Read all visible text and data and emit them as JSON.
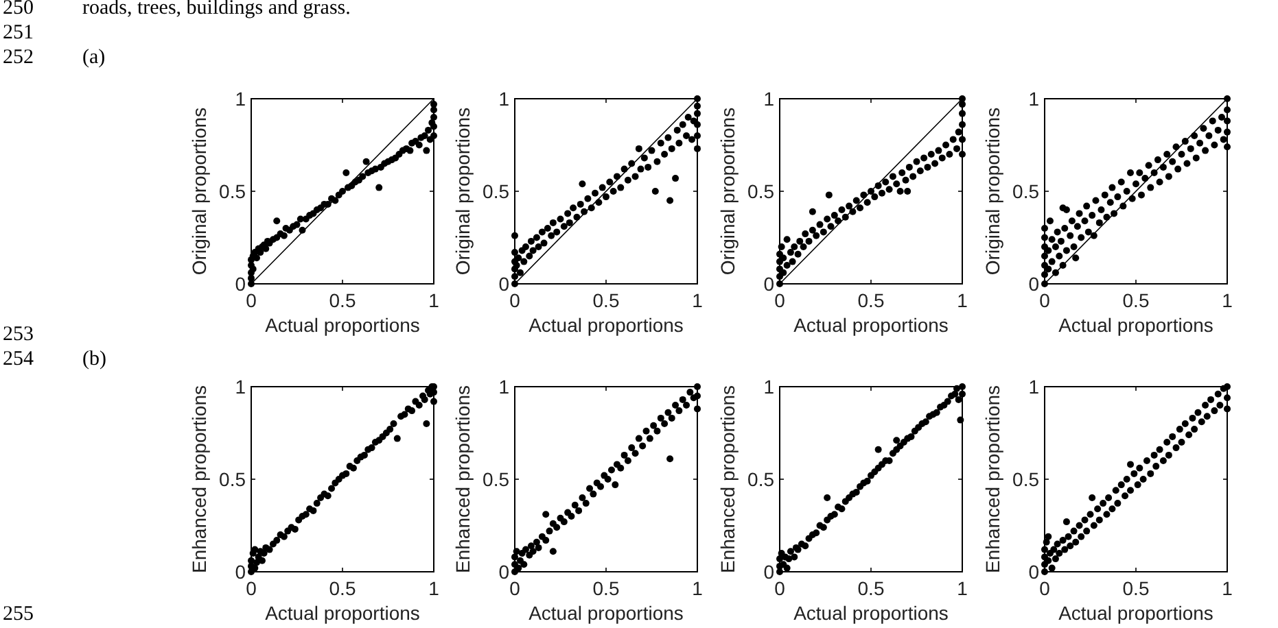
{
  "chart_data": [
    {
      "type": "scatter",
      "xlabel": "Actual proportions",
      "ylabel": "Original proportions",
      "xlim": [
        0,
        1
      ],
      "ylim": [
        0,
        1
      ],
      "xticks": [
        0,
        0.5,
        1
      ],
      "yticks": [
        0,
        0.5,
        1
      ],
      "marker": "circle",
      "annotations": [
        "250",
        "roads, trees, buildings and grass.",
        "251",
        "252",
        "(a)",
        "253"
      ],
      "series": [
        {
          "color": "#000000",
          "x": [
            0,
            0,
            0,
            0,
            0,
            0.01,
            0.01,
            0.02,
            0.03,
            0.04,
            0.05,
            0.06,
            0.07,
            0.08,
            0.09,
            0.1,
            0.12,
            0.14,
            0.14,
            0.16,
            0.18,
            0.19,
            0.21,
            0.23,
            0.25,
            0.27,
            0.28,
            0.3,
            0.32,
            0.34,
            0.36,
            0.38,
            0.4,
            0.42,
            0.44,
            0.46,
            0.48,
            0.5,
            0.52,
            0.53,
            0.55,
            0.57,
            0.59,
            0.61,
            0.63,
            0.64,
            0.66,
            0.68,
            0.7,
            0.71,
            0.73,
            0.75,
            0.77,
            0.79,
            0.81,
            0.83,
            0.85,
            0.87,
            0.88,
            0.9,
            0.92,
            0.93,
            0.95,
            0.96,
            0.97,
            0.98,
            0.99,
            1,
            1,
            1,
            1,
            1
          ],
          "values": [
            0,
            0.03,
            0.06,
            0.1,
            0.13,
            0.15,
            0.08,
            0.17,
            0.14,
            0.19,
            0.17,
            0.2,
            0.21,
            0.19,
            0.23,
            0.22,
            0.24,
            0.34,
            0.25,
            0.27,
            0.26,
            0.3,
            0.29,
            0.31,
            0.32,
            0.35,
            0.29,
            0.35,
            0.37,
            0.38,
            0.4,
            0.41,
            0.43,
            0.43,
            0.46,
            0.45,
            0.48,
            0.5,
            0.6,
            0.52,
            0.53,
            0.55,
            0.56,
            0.58,
            0.66,
            0.6,
            0.61,
            0.62,
            0.52,
            0.63,
            0.65,
            0.66,
            0.67,
            0.68,
            0.7,
            0.72,
            0.73,
            0.72,
            0.76,
            0.77,
            0.75,
            0.79,
            0.8,
            0.72,
            0.83,
            0.78,
            0.87,
            0.8,
            0.85,
            0.9,
            0.94,
            0.97
          ]
        },
        {
          "type": "line",
          "marker": "none",
          "color": "#000000",
          "x": [
            0,
            1
          ],
          "values": [
            0,
            1
          ]
        }
      ]
    },
    {
      "type": "scatter",
      "xlabel": "Actual proportions",
      "ylabel": "Original proportions",
      "xlim": [
        0,
        1
      ],
      "ylim": [
        0,
        1
      ],
      "xticks": [
        0,
        0.5,
        1
      ],
      "yticks": [
        0,
        0.5,
        1
      ],
      "marker": "circle",
      "series": [
        {
          "color": "#000000",
          "x": [
            0,
            0,
            0,
            0,
            0,
            0,
            0.01,
            0.02,
            0.03,
            0.04,
            0.05,
            0.06,
            0.08,
            0.09,
            0.1,
            0.12,
            0.13,
            0.15,
            0.16,
            0.18,
            0.2,
            0.21,
            0.23,
            0.25,
            0.27,
            0.29,
            0.3,
            0.32,
            0.34,
            0.36,
            0.37,
            0.38,
            0.4,
            0.42,
            0.44,
            0.46,
            0.48,
            0.5,
            0.52,
            0.54,
            0.56,
            0.58,
            0.6,
            0.62,
            0.64,
            0.66,
            0.68,
            0.69,
            0.71,
            0.73,
            0.75,
            0.77,
            0.78,
            0.8,
            0.82,
            0.84,
            0.85,
            0.86,
            0.88,
            0.89,
            0.9,
            0.92,
            0.94,
            0.95,
            0.97,
            0.98,
            1,
            1,
            1,
            1,
            1,
            1
          ],
          "values": [
            0,
            0.04,
            0.08,
            0.12,
            0.17,
            0.26,
            0.1,
            0.14,
            0.06,
            0.18,
            0.12,
            0.2,
            0.15,
            0.23,
            0.18,
            0.25,
            0.2,
            0.28,
            0.22,
            0.3,
            0.26,
            0.33,
            0.28,
            0.35,
            0.31,
            0.38,
            0.33,
            0.41,
            0.36,
            0.43,
            0.54,
            0.39,
            0.46,
            0.41,
            0.49,
            0.44,
            0.52,
            0.47,
            0.55,
            0.5,
            0.58,
            0.52,
            0.62,
            0.56,
            0.65,
            0.58,
            0.73,
            0.62,
            0.68,
            0.63,
            0.72,
            0.5,
            0.66,
            0.76,
            0.7,
            0.79,
            0.45,
            0.73,
            0.57,
            0.83,
            0.76,
            0.86,
            0.8,
            0.9,
            0.78,
            0.88,
            0.73,
            0.8,
            0.86,
            0.92,
            0.96,
            1
          ]
        },
        {
          "type": "line",
          "marker": "none",
          "color": "#000000",
          "x": [
            0,
            1
          ],
          "values": [
            0,
            1
          ]
        }
      ]
    },
    {
      "type": "scatter",
      "xlabel": "Actual proportions",
      "ylabel": "Original proportions",
      "xlim": [
        0,
        1
      ],
      "ylim": [
        0,
        1
      ],
      "xticks": [
        0,
        0.5,
        1
      ],
      "yticks": [
        0,
        0.5,
        1
      ],
      "marker": "circle",
      "series": [
        {
          "color": "#000000",
          "x": [
            0,
            0,
            0,
            0,
            0,
            0.01,
            0.02,
            0.02,
            0.04,
            0.04,
            0.06,
            0.07,
            0.08,
            0.1,
            0.11,
            0.13,
            0.14,
            0.16,
            0.18,
            0.18,
            0.2,
            0.22,
            0.24,
            0.26,
            0.27,
            0.28,
            0.3,
            0.32,
            0.34,
            0.36,
            0.38,
            0.4,
            0.42,
            0.44,
            0.46,
            0.48,
            0.5,
            0.52,
            0.54,
            0.56,
            0.58,
            0.6,
            0.62,
            0.64,
            0.66,
            0.67,
            0.69,
            0.7,
            0.71,
            0.73,
            0.75,
            0.77,
            0.79,
            0.81,
            0.83,
            0.85,
            0.87,
            0.89,
            0.91,
            0.93,
            0.95,
            0.97,
            0.98,
            1,
            1,
            1,
            1,
            1,
            1
          ],
          "values": [
            0,
            0.04,
            0.08,
            0.12,
            0.16,
            0.2,
            0.06,
            0.14,
            0.24,
            0.1,
            0.17,
            0.12,
            0.2,
            0.16,
            0.23,
            0.2,
            0.27,
            0.23,
            0.39,
            0.29,
            0.26,
            0.32,
            0.28,
            0.35,
            0.48,
            0.31,
            0.37,
            0.34,
            0.4,
            0.36,
            0.42,
            0.39,
            0.45,
            0.41,
            0.48,
            0.44,
            0.5,
            0.47,
            0.53,
            0.49,
            0.55,
            0.51,
            0.58,
            0.54,
            0.5,
            0.6,
            0.56,
            0.5,
            0.63,
            0.58,
            0.66,
            0.61,
            0.68,
            0.63,
            0.7,
            0.65,
            0.72,
            0.68,
            0.75,
            0.7,
            0.78,
            0.73,
            0.82,
            0.7,
            0.78,
            0.86,
            0.92,
            0.97,
            1
          ]
        },
        {
          "type": "line",
          "marker": "none",
          "color": "#000000",
          "x": [
            0,
            1
          ],
          "values": [
            0,
            1
          ]
        }
      ]
    },
    {
      "type": "scatter",
      "xlabel": "Actual proportions",
      "ylabel": "Original proportions",
      "xlim": [
        0,
        1
      ],
      "ylim": [
        0,
        1
      ],
      "xticks": [
        0,
        0.5,
        1
      ],
      "yticks": [
        0,
        0.5,
        1
      ],
      "marker": "circle",
      "series": [
        {
          "color": "#000000",
          "x": [
            0,
            0,
            0,
            0,
            0,
            0,
            0,
            0.02,
            0.02,
            0.03,
            0.04,
            0.04,
            0.06,
            0.06,
            0.07,
            0.08,
            0.09,
            0.1,
            0.1,
            0.11,
            0.12,
            0.12,
            0.14,
            0.15,
            0.16,
            0.17,
            0.18,
            0.19,
            0.2,
            0.22,
            0.23,
            0.24,
            0.26,
            0.27,
            0.28,
            0.3,
            0.31,
            0.33,
            0.34,
            0.36,
            0.37,
            0.38,
            0.4,
            0.42,
            0.43,
            0.45,
            0.47,
            0.48,
            0.5,
            0.52,
            0.53,
            0.55,
            0.57,
            0.58,
            0.6,
            0.62,
            0.63,
            0.65,
            0.67,
            0.68,
            0.7,
            0.72,
            0.73,
            0.75,
            0.77,
            0.78,
            0.8,
            0.82,
            0.83,
            0.85,
            0.87,
            0.88,
            0.9,
            0.92,
            0.93,
            0.95,
            0.97,
            0.98,
            1,
            1,
            1,
            1,
            1
          ],
          "values": [
            0,
            0.05,
            0.1,
            0.15,
            0.2,
            0.25,
            0.3,
            0.08,
            0.18,
            0.34,
            0.12,
            0.24,
            0.06,
            0.2,
            0.28,
            0.15,
            0.23,
            0.41,
            0.1,
            0.3,
            0.4,
            0.18,
            0.26,
            0.34,
            0.2,
            0.14,
            0.31,
            0.38,
            0.25,
            0.34,
            0.42,
            0.28,
            0.37,
            0.26,
            0.45,
            0.33,
            0.4,
            0.48,
            0.36,
            0.44,
            0.52,
            0.38,
            0.47,
            0.55,
            0.42,
            0.5,
            0.6,
            0.46,
            0.54,
            0.6,
            0.48,
            0.57,
            0.64,
            0.52,
            0.6,
            0.67,
            0.55,
            0.63,
            0.7,
            0.58,
            0.66,
            0.74,
            0.62,
            0.7,
            0.77,
            0.65,
            0.73,
            0.8,
            0.68,
            0.76,
            0.84,
            0.72,
            0.8,
            0.88,
            0.75,
            0.83,
            0.9,
            0.78,
            0.74,
            0.82,
            0.88,
            0.94,
            1
          ]
        },
        {
          "type": "line",
          "marker": "none",
          "color": "#000000",
          "x": [
            0,
            1
          ],
          "values": [
            0,
            1
          ]
        }
      ]
    },
    {
      "type": "scatter",
      "xlabel": "Actual proportions",
      "ylabel": "Enhanced proportions",
      "xlim": [
        0,
        1
      ],
      "ylim": [
        0,
        1
      ],
      "xticks": [
        0,
        0.5,
        1
      ],
      "yticks": [
        0,
        0.5,
        1
      ],
      "marker": "circle",
      "annotations": [
        "254",
        "(b)",
        "255"
      ],
      "series": [
        {
          "color": "#000000",
          "x": [
            0,
            0,
            0,
            0.01,
            0.02,
            0.02,
            0.03,
            0.04,
            0.05,
            0.06,
            0.07,
            0.08,
            0.1,
            0.12,
            0.14,
            0.16,
            0.18,
            0.2,
            0.22,
            0.24,
            0.26,
            0.28,
            0.3,
            0.32,
            0.34,
            0.36,
            0.38,
            0.4,
            0.42,
            0.44,
            0.46,
            0.48,
            0.5,
            0.52,
            0.54,
            0.56,
            0.58,
            0.6,
            0.62,
            0.64,
            0.66,
            0.68,
            0.7,
            0.72,
            0.74,
            0.76,
            0.78,
            0.8,
            0.82,
            0.84,
            0.86,
            0.88,
            0.9,
            0.92,
            0.94,
            0.95,
            0.96,
            0.97,
            0.98,
            0.99,
            1,
            1,
            1
          ],
          "values": [
            0,
            0.03,
            0.06,
            0.1,
            0.02,
            0.12,
            0.05,
            0.08,
            0.11,
            0.06,
            0.1,
            0.13,
            0.12,
            0.15,
            0.17,
            0.2,
            0.19,
            0.22,
            0.24,
            0.23,
            0.28,
            0.3,
            0.31,
            0.34,
            0.33,
            0.37,
            0.4,
            0.42,
            0.41,
            0.45,
            0.48,
            0.5,
            0.52,
            0.53,
            0.57,
            0.56,
            0.6,
            0.62,
            0.63,
            0.66,
            0.67,
            0.7,
            0.71,
            0.73,
            0.75,
            0.77,
            0.8,
            0.72,
            0.84,
            0.85,
            0.88,
            0.87,
            0.92,
            0.9,
            0.95,
            0.93,
            0.8,
            0.98,
            0.96,
            1,
            0.92,
            0.97,
            1
          ]
        }
      ]
    },
    {
      "type": "scatter",
      "xlabel": "Actual proportions",
      "ylabel": "Enhanced proportions",
      "xlim": [
        0,
        1
      ],
      "ylim": [
        0,
        1
      ],
      "xticks": [
        0,
        0.5,
        1
      ],
      "yticks": [
        0,
        0.5,
        1
      ],
      "marker": "circle",
      "series": [
        {
          "color": "#000000",
          "x": [
            0,
            0,
            0,
            0.01,
            0.02,
            0.03,
            0.04,
            0.05,
            0.06,
            0.08,
            0.09,
            0.1,
            0.12,
            0.13,
            0.15,
            0.17,
            0.17,
            0.19,
            0.21,
            0.21,
            0.23,
            0.25,
            0.27,
            0.29,
            0.31,
            0.33,
            0.35,
            0.37,
            0.39,
            0.41,
            0.43,
            0.45,
            0.47,
            0.49,
            0.51,
            0.53,
            0.55,
            0.56,
            0.58,
            0.6,
            0.62,
            0.64,
            0.66,
            0.68,
            0.7,
            0.72,
            0.74,
            0.76,
            0.78,
            0.8,
            0.82,
            0.84,
            0.85,
            0.86,
            0.88,
            0.9,
            0.92,
            0.94,
            0.96,
            0.98,
            1,
            1,
            1
          ],
          "values": [
            0,
            0.04,
            0.08,
            0.11,
            0.02,
            0.06,
            0.1,
            0.04,
            0.12,
            0.09,
            0.14,
            0.11,
            0.16,
            0.13,
            0.19,
            0.31,
            0.17,
            0.22,
            0.11,
            0.26,
            0.24,
            0.29,
            0.27,
            0.32,
            0.3,
            0.36,
            0.33,
            0.4,
            0.37,
            0.45,
            0.42,
            0.48,
            0.46,
            0.52,
            0.5,
            0.55,
            0.47,
            0.58,
            0.56,
            0.63,
            0.6,
            0.67,
            0.64,
            0.72,
            0.68,
            0.76,
            0.72,
            0.79,
            0.76,
            0.83,
            0.8,
            0.86,
            0.61,
            0.83,
            0.9,
            0.87,
            0.93,
            0.9,
            0.97,
            0.94,
            0.88,
            0.95,
            1
          ]
        }
      ]
    },
    {
      "type": "scatter",
      "xlabel": "Actual proportions",
      "ylabel": "Enhanced proportions",
      "xlim": [
        0,
        1
      ],
      "ylim": [
        0,
        1
      ],
      "xticks": [
        0,
        0.5,
        1
      ],
      "yticks": [
        0,
        0.5,
        1
      ],
      "marker": "circle",
      "series": [
        {
          "color": "#000000",
          "x": [
            0,
            0,
            0,
            0.01,
            0.02,
            0.03,
            0.04,
            0.05,
            0.06,
            0.08,
            0.09,
            0.1,
            0.12,
            0.14,
            0.16,
            0.18,
            0.2,
            0.22,
            0.24,
            0.26,
            0.26,
            0.28,
            0.3,
            0.32,
            0.34,
            0.36,
            0.38,
            0.4,
            0.42,
            0.44,
            0.46,
            0.48,
            0.5,
            0.52,
            0.54,
            0.54,
            0.56,
            0.58,
            0.6,
            0.62,
            0.64,
            0.64,
            0.66,
            0.68,
            0.7,
            0.72,
            0.74,
            0.76,
            0.78,
            0.8,
            0.82,
            0.84,
            0.86,
            0.88,
            0.9,
            0.92,
            0.94,
            0.96,
            0.97,
            0.98,
            0.99,
            1,
            1
          ],
          "values": [
            0,
            0.03,
            0.07,
            0.1,
            0.04,
            0.08,
            0.02,
            0.07,
            0.11,
            0.08,
            0.13,
            0.12,
            0.15,
            0.14,
            0.18,
            0.2,
            0.21,
            0.25,
            0.24,
            0.4,
            0.28,
            0.3,
            0.31,
            0.35,
            0.34,
            0.38,
            0.4,
            0.42,
            0.43,
            0.46,
            0.48,
            0.49,
            0.52,
            0.54,
            0.66,
            0.56,
            0.58,
            0.6,
            0.6,
            0.64,
            0.71,
            0.66,
            0.68,
            0.7,
            0.72,
            0.73,
            0.76,
            0.78,
            0.8,
            0.81,
            0.84,
            0.85,
            0.86,
            0.89,
            0.9,
            0.92,
            0.95,
            0.96,
            0.99,
            0.93,
            0.82,
            0.96,
            1
          ]
        }
      ]
    },
    {
      "type": "scatter",
      "xlabel": "Actual proportions",
      "ylabel": "Enhanced proportions",
      "xlim": [
        0,
        1
      ],
      "ylim": [
        0,
        1
      ],
      "xticks": [
        0,
        0.5,
        1
      ],
      "yticks": [
        0,
        0.5,
        1
      ],
      "marker": "circle",
      "series": [
        {
          "color": "#000000",
          "x": [
            0,
            0,
            0,
            0,
            0.01,
            0.02,
            0.02,
            0.03,
            0.04,
            0.05,
            0.06,
            0.07,
            0.08,
            0.1,
            0.11,
            0.12,
            0.13,
            0.14,
            0.16,
            0.17,
            0.19,
            0.2,
            0.22,
            0.23,
            0.25,
            0.26,
            0.27,
            0.29,
            0.3,
            0.32,
            0.34,
            0.35,
            0.37,
            0.39,
            0.4,
            0.42,
            0.44,
            0.45,
            0.47,
            0.47,
            0.49,
            0.51,
            0.52,
            0.54,
            0.56,
            0.58,
            0.6,
            0.61,
            0.63,
            0.65,
            0.67,
            0.68,
            0.7,
            0.72,
            0.74,
            0.75,
            0.77,
            0.79,
            0.81,
            0.82,
            0.84,
            0.86,
            0.88,
            0.89,
            0.91,
            0.93,
            0.95,
            0.96,
            0.98,
            1,
            1,
            1
          ],
          "values": [
            0,
            0.04,
            0.08,
            0.12,
            0.16,
            0.19,
            0.06,
            0.1,
            0.02,
            0.12,
            0.07,
            0.15,
            0.1,
            0.17,
            0.12,
            0.27,
            0.19,
            0.14,
            0.22,
            0.16,
            0.25,
            0.19,
            0.28,
            0.22,
            0.31,
            0.4,
            0.25,
            0.34,
            0.28,
            0.37,
            0.31,
            0.4,
            0.34,
            0.44,
            0.37,
            0.47,
            0.41,
            0.5,
            0.58,
            0.44,
            0.53,
            0.47,
            0.56,
            0.5,
            0.6,
            0.53,
            0.63,
            0.57,
            0.66,
            0.6,
            0.7,
            0.63,
            0.73,
            0.67,
            0.77,
            0.7,
            0.8,
            0.74,
            0.83,
            0.77,
            0.86,
            0.81,
            0.9,
            0.84,
            0.93,
            0.87,
            0.96,
            0.9,
            0.99,
            0.88,
            0.94,
            1
          ]
        }
      ]
    }
  ]
}
